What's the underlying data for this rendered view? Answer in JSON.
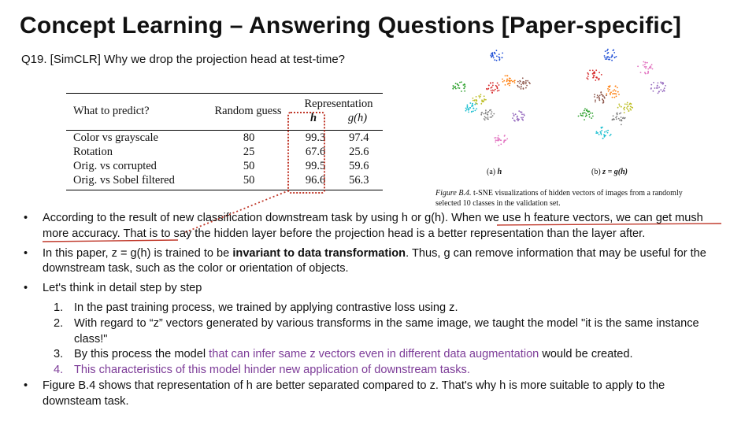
{
  "title": "Concept Learning – Answering Questions [Paper-specific]",
  "question": "Q19. [SimCLR] Why we drop the projection head at test-time?",
  "table": {
    "col_task": "What to predict?",
    "col_random": "Random guess",
    "col_rep": "Representation",
    "col_h": "h",
    "col_g": "g(h)",
    "rows": [
      {
        "task": "Color vs grayscale",
        "random": "80",
        "h": "99.3",
        "g": "97.4"
      },
      {
        "task": "Rotation",
        "random": "25",
        "h": "67.6",
        "g": "25.6"
      },
      {
        "task": "Orig. vs corrupted",
        "random": "50",
        "h": "99.5",
        "g": "59.6"
      },
      {
        "task": "Orig. vs Sobel filtered",
        "random": "50",
        "h": "96.6",
        "g": "56.3"
      }
    ]
  },
  "figure": {
    "caption_a_prefix": "(a)",
    "caption_a_sym": "h",
    "caption_b_prefix": "(b)",
    "caption_b_sym": "z = g(h)",
    "caption_label": "Figure B.4.",
    "caption_text": "t-SNE visualizations of hidden vectors of images from a randomly selected 10 classes in the validation set.",
    "cluster_colors": [
      "#1f4fd6",
      "#d62728",
      "#ff7f0e",
      "#2ca02c",
      "#17becf",
      "#9467bd",
      "#e377c2",
      "#bcbd22",
      "#8c564b",
      "#7f7f7f"
    ]
  },
  "bullets": {
    "b1_a": "According to the result of new classification downstream task by using h or g(h).",
    "b1_b": "When we use h feature vectors, we can get mush more accuracy",
    "b1_c": ". That is to say the hidden layer before the projection head is a better representation than the layer after.",
    "b2_a": "In this paper, z = g(h) is trained to be ",
    "b2_bold": "invariant to data transformation",
    "b2_c": ". Thus, g can remove information that may be useful for the downstream task, such as the color or orientation of objects.",
    "b3": "Let's think in detail step by step",
    "s1": "In the past training process, we trained by applying contrastive loss using z.",
    "s2": "With regard to “z” vectors generated by various transforms in the same image, we taught the model \"it is the same instance class!\"",
    "s3_a": "By this process the model ",
    "s3_purple": "that can infer same z vectors even in different data augmentation",
    "s3_c": " would be created.",
    "s4": "This characteristics of this model hinder new application of downstream tasks.",
    "b4": "Figure B.4 shows that representation of h are better separated compared to z. That's why h is more suitable to apply to the downsteam task.",
    "bullet_glyph": "•",
    "nums": [
      "1.",
      "2.",
      "3.",
      "4."
    ]
  },
  "highlight_color": "#c0392b"
}
